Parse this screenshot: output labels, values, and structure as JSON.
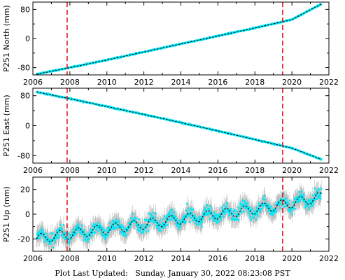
{
  "footer": {
    "text": "Plot Last Updated:   Sunday, January 30, 2022 08:23:08 PST"
  },
  "colors": {
    "data": "#00e8f8",
    "error_bars": "#aaaaaa",
    "model": "#000000",
    "event_lines": "#e8141e",
    "axes": "#000000"
  },
  "chart_data": [
    {
      "type": "scatter",
      "ylabel": "P251 North (mm)",
      "xlim": [
        2006,
        2022
      ],
      "ylim": [
        -100,
        100
      ],
      "x_ticks": [
        "2006",
        "2008",
        "2010",
        "2012",
        "2014",
        "2016",
        "2018",
        "2020",
        "2022"
      ],
      "y_ticks": [
        -80,
        0,
        80
      ],
      "event_lines_x": [
        2007.85,
        2019.5
      ],
      "series": [
        {
          "x": [
            2006.2,
            2008,
            2010,
            2012,
            2014,
            2016,
            2018,
            2020,
            2021.6
          ],
          "y": [
            -98,
            -80,
            -59,
            -37,
            -15,
            7,
            29,
            52,
            95
          ]
        }
      ]
    },
    {
      "type": "scatter",
      "ylabel": "P251 East (mm)",
      "xlim": [
        2006,
        2022
      ],
      "ylim": [
        -100,
        100
      ],
      "x_ticks": [
        "2006",
        "2008",
        "2010",
        "2012",
        "2014",
        "2016",
        "2018",
        "2020",
        "2022"
      ],
      "y_ticks": [
        -80,
        0,
        80
      ],
      "event_lines_x": [
        2007.85,
        2019.5
      ],
      "series": [
        {
          "x": [
            2006.2,
            2008,
            2010,
            2012,
            2014,
            2016,
            2018,
            2020,
            2021.6
          ],
          "y": [
            90,
            72,
            51,
            30,
            8,
            -14,
            -37,
            -60,
            -90
          ]
        }
      ]
    },
    {
      "type": "scatter",
      "ylabel": "P251 Up (mm)",
      "xlim": [
        2006,
        2022
      ],
      "ylim": [
        -30,
        30
      ],
      "x_ticks": [
        "2006",
        "2008",
        "2010",
        "2012",
        "2014",
        "2016",
        "2018",
        "2020",
        "2022"
      ],
      "y_ticks": [
        -20,
        0,
        20
      ],
      "event_lines_x": [
        2007.85,
        2019.5
      ],
      "series": [
        {
          "x": [
            2006.2,
            2008,
            2010,
            2012,
            2014,
            2016,
            2018,
            2020,
            2021.6
          ],
          "y": [
            -20,
            -16,
            -12,
            -8,
            -4,
            0,
            4,
            9,
            14
          ],
          "seasonal_amplitude": 4
        }
      ]
    }
  ]
}
